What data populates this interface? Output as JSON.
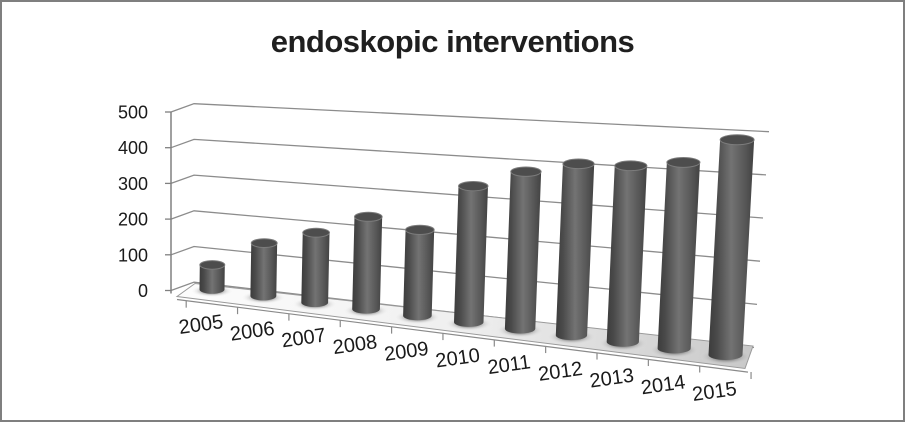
{
  "frame": {
    "background": "#ffffff",
    "border_color": "#7f7f7f"
  },
  "chart_data": {
    "type": "bar",
    "subtype": "3d-cylinder",
    "title": "endoskopic interventions",
    "categories": [
      "2005",
      "2006",
      "2007",
      "2008",
      "2009",
      "2010",
      "2011",
      "2012",
      "2013",
      "2014",
      "2015"
    ],
    "values": [
      60,
      125,
      160,
      205,
      185,
      285,
      320,
      340,
      340,
      350,
      395
    ],
    "xlabel": "",
    "ylabel": "",
    "ylim": [
      0,
      500
    ],
    "yticks": [
      0,
      100,
      200,
      300,
      400,
      500
    ],
    "grid": true,
    "legend": "none",
    "colors": {
      "bar": "#4f4f4f",
      "bar_dark": "#3c3c3c",
      "bar_light": "#737373",
      "gridline": "#8c8c8c",
      "axis": "#808080",
      "text": "#1a1a1a",
      "floor_light": "#fdfdfd",
      "floor_dark": "#c8c8c8"
    }
  }
}
